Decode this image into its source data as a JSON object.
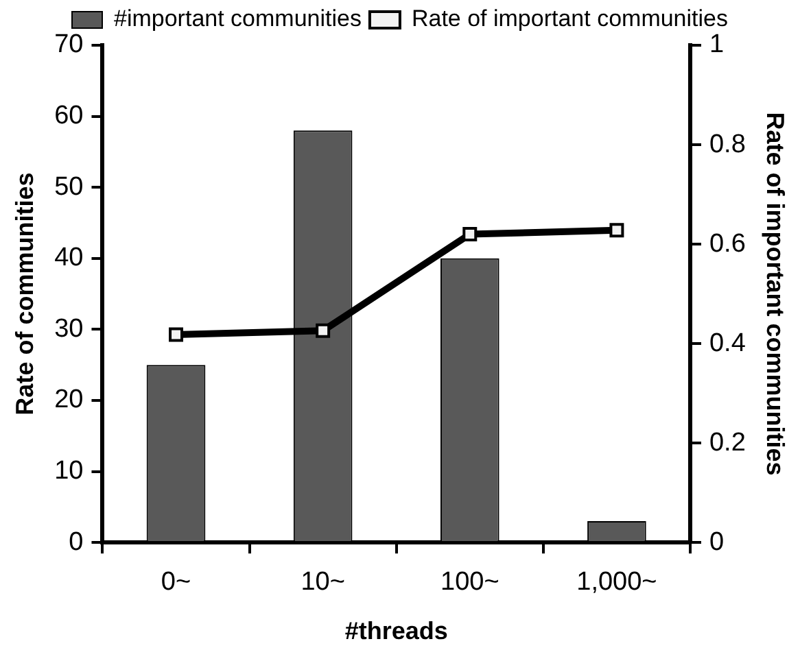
{
  "chart_data": {
    "type": "bar",
    "xlabel": "#threads",
    "ylabel": "Rate of communities",
    "y2label": "Rate of important communities",
    "categories": [
      "0~",
      "10~",
      "100~",
      "1,000~"
    ],
    "series": [
      {
        "name": "#important communities",
        "color": "#595959",
        "values": [
          25,
          58,
          40,
          3
        ]
      },
      {
        "name": "Rate of important communities",
        "type": "line",
        "axis": "y2",
        "color": "#000000",
        "marker": "square",
        "values": [
          0.418,
          0.426,
          0.62,
          0.628
        ]
      }
    ],
    "ylim": [
      0,
      70
    ],
    "yticks": [
      0,
      10,
      20,
      30,
      40,
      50,
      60,
      70
    ],
    "y2lim": [
      0,
      1
    ],
    "y2ticks": [
      0,
      0.2,
      0.4,
      0.6,
      0.8,
      1
    ],
    "grid": false,
    "legend": "top"
  }
}
